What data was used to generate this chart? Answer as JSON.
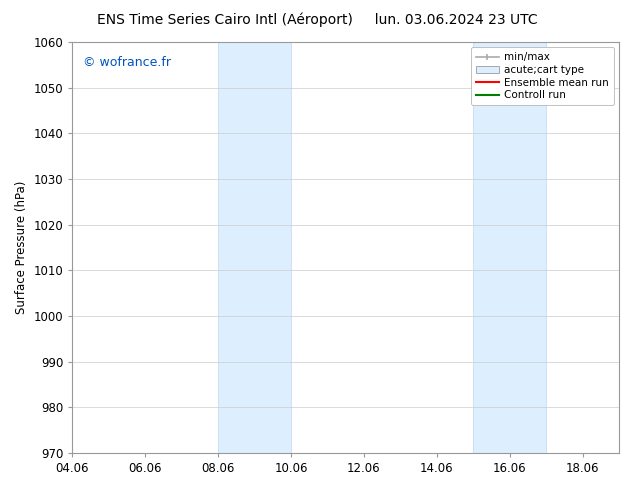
{
  "title_left": "ENS Time Series Cairo Intl (Aéroport)",
  "title_right": "lun. 03.06.2024 23 UTC",
  "ylabel": "Surface Pressure (hPa)",
  "xlabel": "",
  "ylim": [
    970,
    1060
  ],
  "yticks": [
    970,
    980,
    990,
    1000,
    1010,
    1020,
    1030,
    1040,
    1050,
    1060
  ],
  "xlim_start": 4.06,
  "xlim_end": 19.06,
  "xtick_labels": [
    "04.06",
    "06.06",
    "08.06",
    "10.06",
    "12.06",
    "14.06",
    "16.06",
    "18.06"
  ],
  "xtick_positions": [
    4.06,
    6.06,
    8.06,
    10.06,
    12.06,
    14.06,
    16.06,
    18.06
  ],
  "shaded_bands": [
    {
      "x_start": 8.06,
      "x_end": 10.06
    },
    {
      "x_start": 15.06,
      "x_end": 17.06
    }
  ],
  "shaded_color": "#ddeeff",
  "shaded_edge_color": "#c0d8f0",
  "watermark_text": "© wofrance.fr",
  "watermark_color": "#0055bb",
  "legend_items": [
    {
      "label": "min/max",
      "color": "#aaaaaa",
      "style": "line_with_ticks"
    },
    {
      "label": "acute;cart type",
      "color": "#ddeeff",
      "style": "filled_box"
    },
    {
      "label": "Ensemble mean run",
      "color": "#ff0000",
      "style": "line"
    },
    {
      "label": "Controll run",
      "color": "#008000",
      "style": "line"
    }
  ],
  "bg_color": "#ffffff",
  "axes_bg_color": "#ffffff",
  "grid_color": "#cccccc",
  "title_fontsize": 10,
  "tick_fontsize": 8.5,
  "legend_fontsize": 7.5
}
